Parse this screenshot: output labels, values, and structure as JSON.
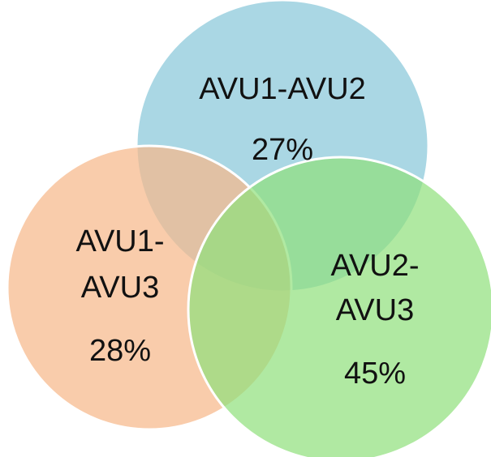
{
  "nodes": [
    {
      "label_lines": [
        "AVU1-AVU2"
      ],
      "value": "27%"
    },
    {
      "label_lines": [
        "AVU1-",
        "AVU3"
      ],
      "value": "28%"
    },
    {
      "label_lines": [
        "AVU2-",
        "AVU3"
      ],
      "value": "45%"
    }
  ]
}
